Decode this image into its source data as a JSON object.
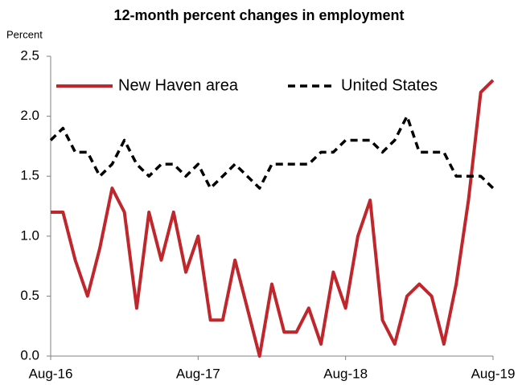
{
  "chart_data": {
    "type": "line",
    "title": "12-month percent changes in employment",
    "y_label": "Percent",
    "categories": [
      "Aug-16",
      null,
      null,
      null,
      null,
      null,
      null,
      null,
      null,
      null,
      null,
      null,
      "Aug-17",
      null,
      null,
      null,
      null,
      null,
      null,
      null,
      null,
      null,
      null,
      null,
      "Aug-18",
      null,
      null,
      null,
      null,
      null,
      null,
      null,
      null,
      null,
      null,
      null,
      "Aug-19"
    ],
    "series": [
      {
        "name": "New Haven area",
        "color": "#c0272d",
        "dash": "solid",
        "values": [
          1.2,
          1.2,
          0.8,
          0.5,
          0.9,
          1.4,
          1.2,
          0.4,
          1.2,
          0.8,
          1.2,
          0.7,
          1.0,
          0.3,
          0.3,
          0.8,
          0.4,
          0.0,
          0.6,
          0.2,
          0.2,
          0.4,
          0.1,
          0.7,
          0.4,
          1.0,
          1.3,
          0.3,
          0.1,
          0.5,
          0.6,
          0.5,
          0.1,
          0.6,
          1.3,
          2.2,
          2.3
        ]
      },
      {
        "name": "United States",
        "color": "#000000",
        "dash": "dashed",
        "values": [
          1.8,
          1.9,
          1.7,
          1.7,
          1.5,
          1.6,
          1.8,
          1.6,
          1.5,
          1.6,
          1.6,
          1.5,
          1.6,
          1.4,
          1.5,
          1.6,
          1.5,
          1.4,
          1.6,
          1.6,
          1.6,
          1.6,
          1.7,
          1.7,
          1.8,
          1.8,
          1.8,
          1.7,
          1.8,
          2.0,
          1.7,
          1.7,
          1.7,
          1.5,
          1.5,
          1.5,
          1.4
        ]
      }
    ],
    "ylim": [
      0,
      2.5
    ],
    "yticks": [
      {
        "value": 0,
        "label": "0.0"
      },
      0.5,
      {
        "value": 1,
        "label": "1.0"
      },
      1.5,
      {
        "value": 2,
        "label": "2.0"
      },
      2.5
    ],
    "grid": false,
    "legend": "top"
  }
}
